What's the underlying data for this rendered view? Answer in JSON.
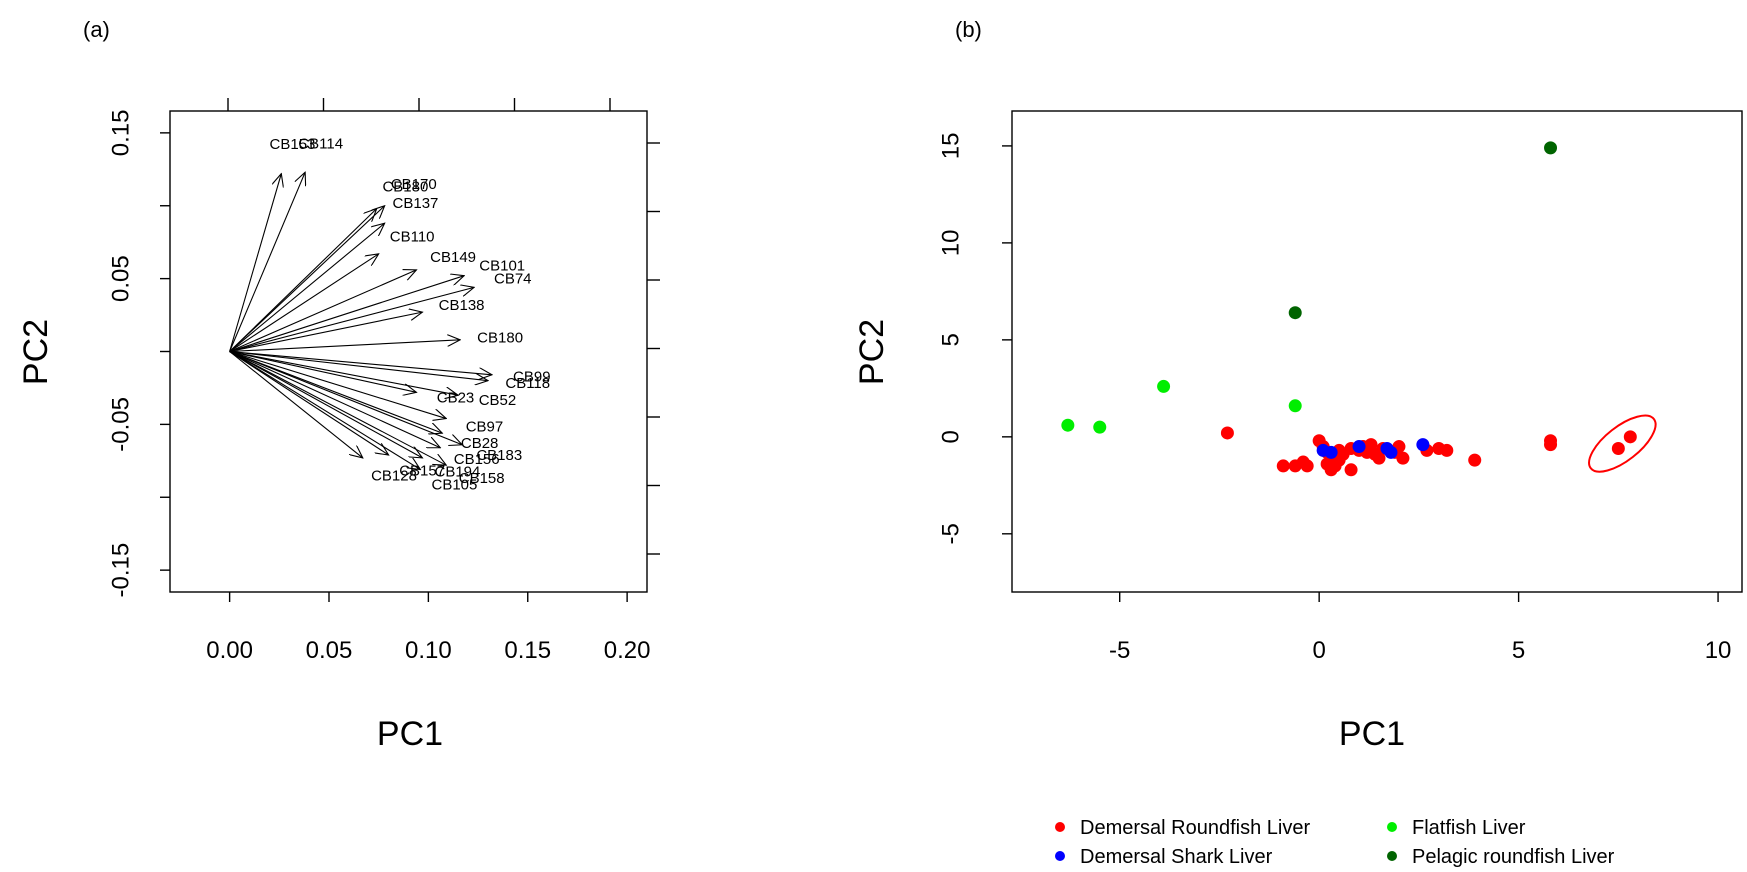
{
  "chart_data": [
    {
      "type": "biplot",
      "panel_label": "(a)",
      "xlabel": "PC1",
      "ylabel": "PC2",
      "x_ticks": [
        "0.00",
        "0.05",
        "0.10",
        "0.15",
        "0.20"
      ],
      "y_ticks": [
        "0.15",
        "0.05",
        "-0.05",
        "-0.15"
      ],
      "xlim": [
        -0.03,
        0.21
      ],
      "ylim": [
        -0.165,
        0.165
      ],
      "origin": [
        0,
        0
      ],
      "arrows": [
        {
          "name": "CB153",
          "x": 0.026,
          "y": 0.122
        },
        {
          "name": "CB114",
          "x": 0.038,
          "y": 0.123
        },
        {
          "name": "CB170",
          "x": 0.078,
          "y": 0.1
        },
        {
          "name": "CB180",
          "x": 0.074,
          "y": 0.098
        },
        {
          "name": "CB137",
          "x": 0.078,
          "y": 0.088
        },
        {
          "name": "CB110",
          "x": 0.075,
          "y": 0.067
        },
        {
          "name": "CB149",
          "x": 0.094,
          "y": 0.056
        },
        {
          "name": "CB101",
          "x": 0.118,
          "y": 0.052
        },
        {
          "name": "CB74",
          "x": 0.123,
          "y": 0.044
        },
        {
          "name": "CB138",
          "x": 0.097,
          "y": 0.027
        },
        {
          "name": "CB180",
          "x": 0.116,
          "y": 0.008
        },
        {
          "name": "CB99",
          "x": 0.132,
          "y": -0.016
        },
        {
          "name": "CB118",
          "x": 0.13,
          "y": -0.02
        },
        {
          "name": "CB52",
          "x": 0.115,
          "y": -0.03
        },
        {
          "name": "CB97",
          "x": 0.109,
          "y": -0.046
        },
        {
          "name": "CB28",
          "x": 0.107,
          "y": -0.056
        },
        {
          "name": "CB183",
          "x": 0.117,
          "y": -0.064
        },
        {
          "name": "CB156",
          "x": 0.106,
          "y": -0.066
        },
        {
          "name": "CB194",
          "x": 0.097,
          "y": -0.073
        },
        {
          "name": "CB158",
          "x": 0.109,
          "y": -0.078
        },
        {
          "name": "CB157",
          "x": 0.08,
          "y": -0.071
        },
        {
          "name": "CB105",
          "x": 0.096,
          "y": -0.081
        },
        {
          "name": "CB128",
          "x": 0.067,
          "y": -0.073
        },
        {
          "name": "CB23",
          "x": 0.094,
          "y": -0.028
        }
      ]
    },
    {
      "type": "scatter",
      "panel_label": "(b)",
      "xlabel": "PC1",
      "ylabel": "PC2",
      "x_ticks": [
        "-5",
        "0",
        "5",
        "10"
      ],
      "y_ticks": [
        "15",
        "10",
        "5",
        "0",
        "-5"
      ],
      "xlim": [
        -7.7,
        10.6
      ],
      "ylim": [
        -8,
        16.8
      ],
      "series": [
        {
          "name": "Demersal Roundfish Liver",
          "color": "#ff0000",
          "points": [
            [
              -2.3,
              0.2
            ],
            [
              -0.9,
              -1.5
            ],
            [
              -0.6,
              -1.5
            ],
            [
              -0.4,
              -1.3
            ],
            [
              -0.3,
              -1.5
            ],
            [
              0.0,
              -0.2
            ],
            [
              0.1,
              -0.5
            ],
            [
              0.2,
              -0.8
            ],
            [
              0.2,
              -1.4
            ],
            [
              0.3,
              -1.7
            ],
            [
              0.3,
              -1.1
            ],
            [
              0.4,
              -1.5
            ],
            [
              0.5,
              -1.2
            ],
            [
              0.5,
              -0.7
            ],
            [
              0.6,
              -0.9
            ],
            [
              0.8,
              -1.7
            ],
            [
              0.8,
              -0.6
            ],
            [
              1.0,
              -0.7
            ],
            [
              1.1,
              -0.5
            ],
            [
              1.2,
              -0.8
            ],
            [
              1.3,
              -0.4
            ],
            [
              1.4,
              -0.9
            ],
            [
              1.5,
              -1.1
            ],
            [
              1.6,
              -0.6
            ],
            [
              1.9,
              -0.8
            ],
            [
              2.0,
              -0.5
            ],
            [
              2.1,
              -1.1
            ],
            [
              2.7,
              -0.7
            ],
            [
              3.0,
              -0.6
            ],
            [
              3.2,
              -0.7
            ],
            [
              3.9,
              -1.2
            ],
            [
              5.8,
              -0.2
            ],
            [
              5.8,
              -0.4
            ],
            [
              7.5,
              -0.6
            ],
            [
              7.8,
              0.0
            ]
          ]
        },
        {
          "name": "Demersal Shark Liver",
          "color": "#0000ff",
          "points": [
            [
              0.1,
              -0.7
            ],
            [
              0.3,
              -0.8
            ],
            [
              1.0,
              -0.5
            ],
            [
              1.7,
              -0.6
            ],
            [
              1.8,
              -0.8
            ],
            [
              2.6,
              -0.4
            ]
          ]
        },
        {
          "name": "Flatfish Liver",
          "color": "#00ee00",
          "points": [
            [
              -6.3,
              0.6
            ],
            [
              -5.5,
              0.5
            ],
            [
              -3.9,
              2.6
            ],
            [
              -0.6,
              1.6
            ]
          ]
        },
        {
          "name": "Pelagic roundfish Liver",
          "color": "#006400",
          "points": [
            [
              5.8,
              14.9
            ],
            [
              -0.6,
              6.4
            ]
          ]
        }
      ],
      "annotation": {
        "type": "ellipse",
        "color": "#ff0000",
        "cx": 7.6,
        "cy": -0.35
      }
    }
  ]
}
